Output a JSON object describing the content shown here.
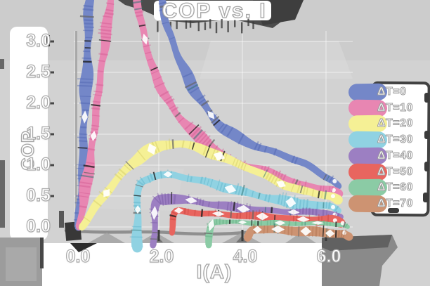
{
  "title": "COP vs. I",
  "axes": {
    "xlabel": "I(A)",
    "ylabel": "COP",
    "xtick_labels": [
      "0.0",
      "2.0",
      "4.0",
      "6.0"
    ],
    "ytick_labels": [
      "3.0",
      "2.5",
      "2.0",
      "1.5",
      "1.0",
      "0.5",
      "0.0"
    ]
  },
  "colors": {
    "background": "#d2d2d2",
    "band_white": "#ffffff",
    "sketch_dark": "#4c4c4c",
    "spine_gray": "#8f8f8f",
    "grid_white": "#ffffff",
    "text_fill": "#ffffff",
    "text_outline": "#a5a5a5"
  },
  "chart_data": {
    "type": "line",
    "style": "hand-drawn-sketch",
    "title": "COP vs. I",
    "xlabel": "I(A)",
    "ylabel": "COP",
    "xlim": [
      0,
      6.6
    ],
    "ylim": [
      0,
      3.0
    ],
    "xticks": [
      0.0,
      2.0,
      4.0,
      6.0
    ],
    "yticks": [
      0.0,
      0.5,
      1.0,
      1.5,
      2.0,
      2.5,
      3.0
    ],
    "grid": true,
    "legend_position": "right",
    "series": [
      {
        "name": "ΔT=0",
        "color": "#7487c8",
        "shade": "#4a60ae",
        "peak_offscale": true,
        "points": [
          [
            0.08,
            0
          ],
          [
            0.25,
            2.0
          ],
          [
            0.32,
            3.4
          ],
          [
            0.6,
            5.2
          ],
          [
            1.2,
            5.8
          ],
          [
            1.9,
            4.2
          ],
          [
            2.2,
            3.25
          ],
          [
            2.5,
            2.7
          ],
          [
            2.8,
            2.25
          ],
          [
            3.2,
            1.85
          ],
          [
            3.5,
            1.62
          ],
          [
            3.9,
            1.45
          ],
          [
            4.4,
            1.28
          ],
          [
            5.0,
            1.15
          ],
          [
            5.5,
            1.02
          ],
          [
            5.8,
            0.9
          ],
          [
            6.05,
            0.8
          ],
          [
            6.2,
            0.75
          ],
          [
            6.3,
            0.66
          ]
        ]
      },
      {
        "name": "ΔT=10",
        "color": "#e886b2",
        "shade": "#d1568f",
        "peak_offscale": true,
        "points": [
          [
            0.12,
            0
          ],
          [
            0.5,
            1.8
          ],
          [
            0.78,
            3.4
          ],
          [
            1.0,
            4.3
          ],
          [
            1.2,
            4.5
          ],
          [
            1.45,
            3.8
          ],
          [
            1.6,
            3.2
          ],
          [
            1.8,
            2.65
          ],
          [
            2.1,
            2.2
          ],
          [
            2.4,
            1.85
          ],
          [
            2.8,
            1.55
          ],
          [
            3.2,
            1.3
          ],
          [
            3.6,
            1.12
          ],
          [
            4.1,
            0.98
          ],
          [
            4.6,
            0.9
          ],
          [
            5.0,
            0.8
          ],
          [
            5.35,
            0.68
          ],
          [
            5.8,
            0.62
          ],
          [
            6.15,
            0.6
          ],
          [
            6.3,
            0.53
          ]
        ]
      },
      {
        "name": "ΔT=20",
        "color": "#f5f095",
        "shade": "#cfc75e",
        "peak_offscale": false,
        "points": [
          [
            0.15,
            0
          ],
          [
            0.5,
            0.33
          ],
          [
            0.9,
            0.68
          ],
          [
            1.3,
            1.0
          ],
          [
            1.7,
            1.22
          ],
          [
            2.1,
            1.33
          ],
          [
            2.5,
            1.35
          ],
          [
            2.9,
            1.28
          ],
          [
            3.3,
            1.18
          ],
          [
            3.8,
            1.05
          ],
          [
            4.2,
            0.95
          ],
          [
            4.6,
            0.82
          ],
          [
            5.0,
            0.68
          ],
          [
            5.4,
            0.58
          ],
          [
            5.9,
            0.52
          ],
          [
            6.15,
            0.5
          ],
          [
            6.28,
            0.43
          ]
        ]
      },
      {
        "name": "ΔT=30",
        "color": "#90d2e2",
        "shade": "#55aec6",
        "peak_offscale": false,
        "points": [
          [
            1.47,
            -0.33
          ],
          [
            1.5,
            0.45
          ],
          [
            1.55,
            0.72
          ],
          [
            1.9,
            0.82
          ],
          [
            2.3,
            0.85
          ],
          [
            2.7,
            0.8
          ],
          [
            3.1,
            0.74
          ],
          [
            3.5,
            0.66
          ],
          [
            4.0,
            0.56
          ],
          [
            4.4,
            0.5
          ],
          [
            4.8,
            0.44
          ],
          [
            5.3,
            0.38
          ],
          [
            5.8,
            0.35
          ],
          [
            6.15,
            0.34
          ],
          [
            6.3,
            0.27
          ]
        ]
      },
      {
        "name": "ΔT=40",
        "color": "#9c7fc2",
        "shade": "#71549e",
        "peak_offscale": false,
        "points": [
          [
            1.87,
            -0.3
          ],
          [
            1.9,
            0.28
          ],
          [
            1.95,
            0.44
          ],
          [
            2.3,
            0.46
          ],
          [
            2.7,
            0.42
          ],
          [
            3.2,
            0.37
          ],
          [
            3.8,
            0.32
          ],
          [
            4.4,
            0.28
          ],
          [
            5.0,
            0.25
          ],
          [
            5.6,
            0.23
          ],
          [
            6.1,
            0.22
          ],
          [
            6.35,
            0.16
          ]
        ]
      },
      {
        "name": "ΔT=50",
        "color": "#e8655f",
        "shade": "#c13d37",
        "peak_offscale": false,
        "points": [
          [
            2.31,
            -0.1
          ],
          [
            2.35,
            0.18
          ],
          [
            2.4,
            0.27
          ],
          [
            2.7,
            0.25
          ],
          [
            3.2,
            0.22
          ],
          [
            3.8,
            0.19
          ],
          [
            4.4,
            0.16
          ],
          [
            5.0,
            0.14
          ],
          [
            5.6,
            0.12
          ],
          [
            6.2,
            0.11
          ],
          [
            6.35,
            0.06
          ]
        ]
      },
      {
        "name": "ΔT=60",
        "color": "#8bcba5",
        "shade": "#5aa77d",
        "peak_offscale": false,
        "points": [
          [
            3.21,
            -0.3
          ],
          [
            3.25,
            0.04
          ],
          [
            3.3,
            0.09
          ],
          [
            3.7,
            0.08
          ],
          [
            4.3,
            0.07
          ],
          [
            4.9,
            0.06
          ],
          [
            5.5,
            0.05
          ],
          [
            6.1,
            0.045
          ],
          [
            6.45,
            0.04
          ],
          [
            6.52,
            0.0
          ]
        ]
      },
      {
        "name": "ΔT=70",
        "color": "#cd9372",
        "shade": "#aa6c49",
        "peak_offscale": false,
        "points": [
          [
            4.13,
            -0.18
          ],
          [
            4.2,
            -0.03
          ],
          [
            4.6,
            -0.05
          ],
          [
            5.1,
            -0.06
          ],
          [
            5.6,
            -0.07
          ],
          [
            6.1,
            -0.09
          ],
          [
            6.45,
            -0.1
          ],
          [
            6.55,
            -0.16
          ]
        ]
      }
    ]
  }
}
